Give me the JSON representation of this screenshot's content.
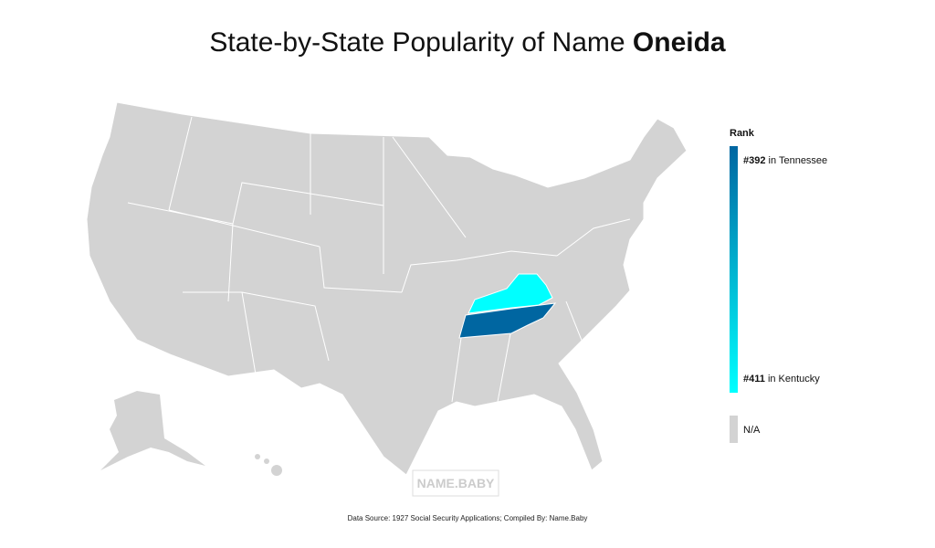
{
  "header": {
    "title": "State-by-State Popularity of Name",
    "name": "Oneida"
  },
  "legend": {
    "title": "Rank",
    "entries": [
      {
        "rank": "#392",
        "state": "in Tennessee"
      },
      {
        "rank": "#411",
        "state": "in Kentucky"
      }
    ],
    "na": "N/A"
  },
  "watermark": "NAME.BABY",
  "footer": "Data Source: 1927 Social Security Applications; Compiled By: Name.Baby"
}
